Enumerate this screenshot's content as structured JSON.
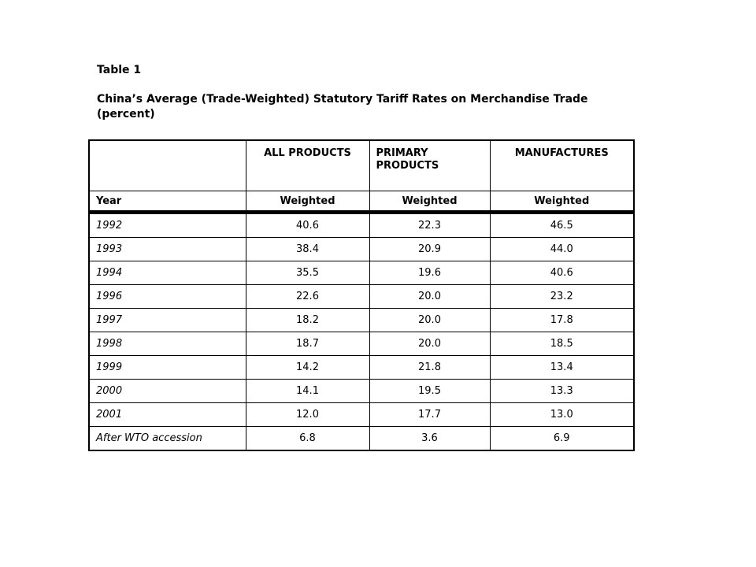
{
  "table_label": "Table 1",
  "caption_line1": "China’s Average (Trade-Weighted) Statutory Tariff Rates on Merchandise Trade",
  "caption_line2": "(percent)",
  "header": {
    "col1": "",
    "col2": "ALL PRODUCTS",
    "col3_line1": "PRIMARY",
    "col3_line2": "PRODUCTS",
    "col4": "MANUFACTURES"
  },
  "subheader": {
    "year": "Year",
    "all": "Weighted",
    "primary": "Weighted",
    "manufactures": "Weighted"
  },
  "rows": [
    {
      "year": "1992",
      "all": "40.6",
      "primary": "22.3",
      "manufactures": "46.5"
    },
    {
      "year": "1993",
      "all": "38.4",
      "primary": "20.9",
      "manufactures": "44.0"
    },
    {
      "year": "1994",
      "all": "35.5",
      "primary": "19.6",
      "manufactures": "40.6"
    },
    {
      "year": "1996",
      "all": "22.6",
      "primary": "20.0",
      "manufactures": "23.2"
    },
    {
      "year": "1997",
      "all": "18.2",
      "primary": "20.0",
      "manufactures": "17.8"
    },
    {
      "year": "1998",
      "all": "18.7",
      "primary": "20.0",
      "manufactures": "18.5"
    },
    {
      "year": "1999",
      "all": "14.2",
      "primary": "21.8",
      "manufactures": "13.4"
    },
    {
      "year": "2000",
      "all": "14.1",
      "primary": "19.5",
      "manufactures": "13.3"
    },
    {
      "year": "2001",
      "all": "12.0",
      "primary": "17.7",
      "manufactures": "13.0"
    },
    {
      "year": "After WTO accession",
      "all": "6.8",
      "primary": "3.6",
      "manufactures": "6.9"
    }
  ]
}
